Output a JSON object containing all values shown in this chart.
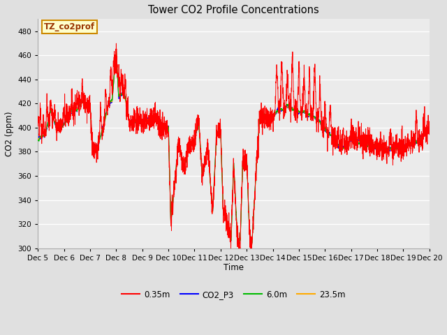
{
  "title": "Tower CO2 Profile Concentrations",
  "xlabel": "Time",
  "ylabel": "CO2 (ppm)",
  "ylim": [
    300,
    490
  ],
  "yticks": [
    300,
    320,
    340,
    360,
    380,
    400,
    420,
    440,
    460,
    480
  ],
  "annotation_text": "TZ_co2prof",
  "annotation_bg": "#ffffcc",
  "annotation_border": "#cc8800",
  "line_colors": {
    "0.35m": "#ff0000",
    "CO2_P3": "#0000ff",
    "6.0m": "#00bb00",
    "23.5m": "#ffaa00"
  },
  "bg_color": "#e0e0e0",
  "plot_bg": "#ebebeb",
  "grid_color": "#ffffff",
  "num_points": 3000,
  "x_start": 5,
  "x_end": 20,
  "xtick_days": [
    5,
    6,
    7,
    8,
    9,
    10,
    11,
    12,
    13,
    14,
    15,
    16,
    17,
    18,
    19,
    20
  ],
  "legend_labels": [
    "0.35m",
    "CO2_P3",
    "6.0m",
    "23.5m"
  ]
}
